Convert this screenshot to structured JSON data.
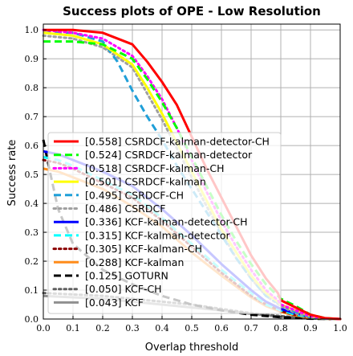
{
  "chart_data": {
    "type": "line",
    "title": "Success plots of OPE - Low Resolution",
    "xlabel": "Overlap threshold",
    "ylabel": "Success rate",
    "xlim": [
      0,
      1
    ],
    "ylim": [
      0,
      1.02
    ],
    "x_ticks": [
      "0.0",
      "0.1",
      "0.2",
      "0.3",
      "0.4",
      "0.5",
      "0.6",
      "0.7",
      "0.8",
      "0.9",
      "1.0"
    ],
    "y_ticks": [
      "0.0",
      "0.1",
      "0.2",
      "0.3",
      "0.4",
      "0.5",
      "0.6",
      "0.7",
      "0.8",
      "0.9",
      "1.0"
    ],
    "grid": true,
    "legend_position": "center-left",
    "series": [
      {
        "name": "[0.558] CSRDCF-kalman-detector-CH",
        "color": "#ff0000",
        "dash": "solid",
        "x": [
          0,
          0.1,
          0.2,
          0.3,
          0.35,
          0.4,
          0.45,
          0.5,
          0.55,
          0.6,
          0.65,
          0.7,
          0.75,
          0.79,
          0.8,
          0.85,
          0.9,
          0.95,
          1.0
        ],
        "y": [
          1.0,
          1.0,
          0.99,
          0.95,
          0.89,
          0.82,
          0.74,
          0.63,
          0.52,
          0.42,
          0.32,
          0.22,
          0.14,
          0.09,
          0.065,
          0.04,
          0.015,
          0.003,
          0.0
        ]
      },
      {
        "name": "[0.524] CSRDCF-kalman-detector",
        "color": "#00ff00",
        "dash": "dashed",
        "x": [
          0,
          0.1,
          0.2,
          0.3,
          0.35,
          0.4,
          0.45,
          0.5,
          0.55,
          0.6,
          0.65,
          0.7,
          0.75,
          0.79,
          0.8,
          0.85,
          0.9,
          0.95,
          1.0
        ],
        "y": [
          0.96,
          0.96,
          0.95,
          0.9,
          0.83,
          0.75,
          0.66,
          0.56,
          0.46,
          0.36,
          0.27,
          0.19,
          0.12,
          0.08,
          0.07,
          0.045,
          0.015,
          0.003,
          0.0
        ]
      },
      {
        "name": "[0.518] CSRDCF-kalman-CH",
        "color": "#ff00ff",
        "dash": "dotted",
        "x": [
          0,
          0.1,
          0.2,
          0.3,
          0.35,
          0.4,
          0.45,
          0.5,
          0.55,
          0.6,
          0.65,
          0.7,
          0.75,
          0.79,
          0.8,
          0.85,
          0.9,
          0.95,
          1.0
        ],
        "y": [
          1.0,
          0.99,
          0.97,
          0.91,
          0.84,
          0.76,
          0.66,
          0.55,
          0.44,
          0.34,
          0.25,
          0.17,
          0.1,
          0.065,
          0.05,
          0.03,
          0.01,
          0.002,
          0.0
        ]
      },
      {
        "name": "[0.501] CSRDCF-kalman",
        "color": "#ffff00",
        "dash": "solid",
        "x": [
          0,
          0.1,
          0.2,
          0.3,
          0.35,
          0.4,
          0.45,
          0.5,
          0.55,
          0.6,
          0.65,
          0.7,
          0.75,
          0.79,
          0.8,
          0.85,
          0.9,
          0.95,
          1.0
        ],
        "y": [
          0.99,
          0.98,
          0.95,
          0.88,
          0.8,
          0.71,
          0.61,
          0.51,
          0.41,
          0.31,
          0.23,
          0.15,
          0.09,
          0.06,
          0.05,
          0.03,
          0.01,
          0.002,
          0.0
        ]
      },
      {
        "name": "[0.495] CSRDCF-CH",
        "color": "#1f9fd8",
        "dash": "dashed",
        "x": [
          0,
          0.1,
          0.2,
          0.25,
          0.3,
          0.35,
          0.4,
          0.45,
          0.5,
          0.55,
          0.6,
          0.65,
          0.7,
          0.75,
          0.8,
          0.85,
          0.9,
          0.95,
          1.0
        ],
        "y": [
          0.99,
          0.99,
          0.96,
          0.89,
          0.79,
          0.7,
          0.62,
          0.53,
          0.45,
          0.37,
          0.29,
          0.21,
          0.14,
          0.08,
          0.05,
          0.025,
          0.008,
          0.002,
          0.0
        ]
      },
      {
        "name": "[0.486] CSRDCF",
        "color": "#a0a0a0",
        "dash": "dotted",
        "x": [
          0,
          0.1,
          0.2,
          0.3,
          0.35,
          0.4,
          0.45,
          0.5,
          0.55,
          0.6,
          0.65,
          0.7,
          0.75,
          0.8,
          0.85,
          0.9,
          0.95,
          1.0
        ],
        "y": [
          0.98,
          0.97,
          0.94,
          0.87,
          0.78,
          0.69,
          0.59,
          0.49,
          0.39,
          0.3,
          0.21,
          0.14,
          0.08,
          0.045,
          0.02,
          0.006,
          0.001,
          0.0
        ]
      },
      {
        "name": "[0.336] KCF-kalman-detector-CH",
        "color": "#0000ff",
        "dash": "solid",
        "x": [
          0,
          0.05,
          0.1,
          0.2,
          0.3,
          0.4,
          0.5,
          0.6,
          0.7,
          0.75,
          0.79,
          0.8,
          0.85,
          0.9,
          0.95,
          1.0
        ],
        "y": [
          0.58,
          0.57,
          0.55,
          0.51,
          0.46,
          0.38,
          0.29,
          0.19,
          0.1,
          0.06,
          0.04,
          0.035,
          0.02,
          0.008,
          0.002,
          0.0
        ]
      },
      {
        "name": "[0.315] KCF-kalman-detector",
        "color": "#00ffff",
        "dash": "dashed",
        "x": [
          0,
          0.05,
          0.1,
          0.2,
          0.3,
          0.4,
          0.5,
          0.6,
          0.7,
          0.75,
          0.8,
          0.85,
          0.9,
          0.95,
          1.0
        ],
        "y": [
          0.56,
          0.55,
          0.53,
          0.48,
          0.43,
          0.35,
          0.26,
          0.17,
          0.09,
          0.05,
          0.03,
          0.015,
          0.006,
          0.001,
          0.0
        ]
      },
      {
        "name": "[0.305] KCF-kalman-CH",
        "color": "#8b0000",
        "dash": "dotted",
        "x": [
          0,
          0.05,
          0.1,
          0.2,
          0.3,
          0.4,
          0.5,
          0.6,
          0.7,
          0.75,
          0.8,
          0.85,
          0.9,
          0.95,
          1.0
        ],
        "y": [
          0.55,
          0.54,
          0.52,
          0.47,
          0.42,
          0.34,
          0.25,
          0.16,
          0.08,
          0.05,
          0.028,
          0.014,
          0.005,
          0.001,
          0.0
        ]
      },
      {
        "name": "[0.288] KCF-kalman",
        "color": "#ff8c1a",
        "dash": "solid",
        "x": [
          0,
          0.05,
          0.1,
          0.2,
          0.3,
          0.4,
          0.5,
          0.6,
          0.7,
          0.75,
          0.8,
          0.85,
          0.9,
          0.95,
          1.0
        ],
        "y": [
          0.52,
          0.51,
          0.49,
          0.45,
          0.39,
          0.32,
          0.23,
          0.15,
          0.075,
          0.045,
          0.025,
          0.012,
          0.004,
          0.001,
          0.0
        ]
      },
      {
        "name": "[0.125] GOTURN",
        "color": "#000000",
        "dash": "dashed",
        "x": [
          0,
          0.02,
          0.05,
          0.1,
          0.2,
          0.3,
          0.4,
          0.5,
          0.6,
          0.7,
          0.8,
          0.9,
          1.0
        ],
        "y": [
          0.62,
          0.52,
          0.38,
          0.26,
          0.17,
          0.12,
          0.08,
          0.05,
          0.03,
          0.015,
          0.006,
          0.001,
          0.0
        ]
      },
      {
        "name": "[0.050] KCF-CH",
        "color": "#606060",
        "dash": "dotted",
        "x": [
          0,
          0.1,
          0.2,
          0.3,
          0.4,
          0.5,
          0.6,
          0.7,
          0.8,
          0.9,
          1.0
        ],
        "y": [
          0.09,
          0.085,
          0.08,
          0.07,
          0.06,
          0.05,
          0.035,
          0.02,
          0.01,
          0.002,
          0.0
        ]
      },
      {
        "name": "[0.043] KCF",
        "color": "#909090",
        "dash": "solid",
        "x": [
          0,
          0.1,
          0.2,
          0.3,
          0.4,
          0.5,
          0.6,
          0.7,
          0.8,
          0.9,
          1.0
        ],
        "y": [
          0.08,
          0.075,
          0.07,
          0.06,
          0.05,
          0.04,
          0.03,
          0.018,
          0.008,
          0.002,
          0.0
        ]
      }
    ]
  }
}
